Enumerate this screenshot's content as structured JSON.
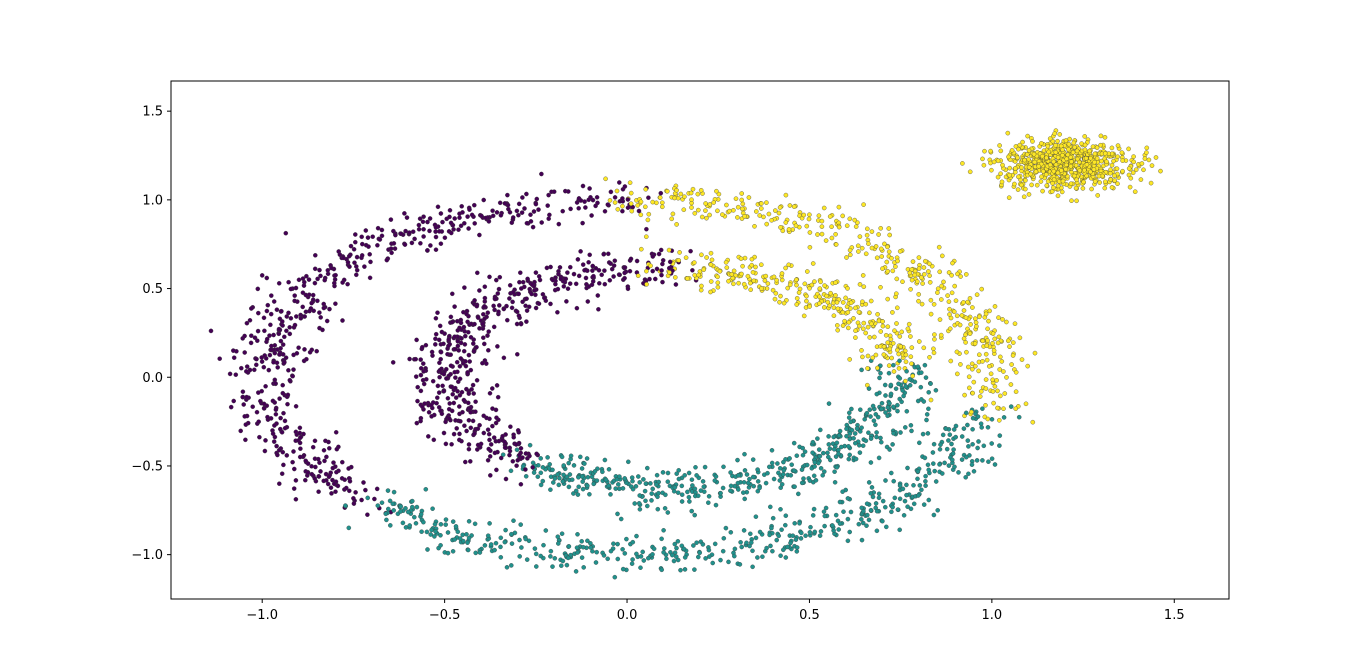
{
  "chart_data": {
    "type": "scatter",
    "title": "",
    "xlabel": "",
    "ylabel": "",
    "xlim": [
      -1.25,
      1.65
    ],
    "ylim": [
      -1.25,
      1.67
    ],
    "xticks": [
      -1.0,
      -0.5,
      0.0,
      0.5,
      1.0,
      1.5
    ],
    "xtick_labels": [
      "−1.0",
      "−0.5",
      "0.0",
      "0.5",
      "1.0",
      "1.5"
    ],
    "yticks": [
      -1.0,
      -0.5,
      0.0,
      0.5,
      1.0,
      1.5
    ],
    "ytick_labels": [
      "−1.0",
      "−0.5",
      "0.0",
      "0.5",
      "1.0",
      "1.5"
    ],
    "grid": false,
    "legend": "none",
    "colors": {
      "cluster_0": "#440154",
      "cluster_1": "#21918c",
      "cluster_2": "#fde725",
      "edge": "#3b3b3b",
      "axes": "#000000",
      "background": "#ffffff"
    },
    "groups": [
      {
        "shape": "ring",
        "center": [
          0.0,
          0.0
        ],
        "radius": [
          1.0,
          1.0
        ],
        "noise": 0.055,
        "count": 1500,
        "cluster_arcs_deg": [
          {
            "cluster": 2,
            "from": -12,
            "to": 90
          },
          {
            "cluster": 0,
            "from": 90,
            "to": 225
          },
          {
            "cluster": 1,
            "from": 225,
            "to": 348
          }
        ]
      },
      {
        "shape": "ring",
        "center": [
          0.12,
          0.0
        ],
        "radius": [
          0.62,
          0.62
        ],
        "noise": 0.055,
        "count": 1350,
        "cluster_arcs_deg": [
          {
            "cluster": 2,
            "from": 5,
            "to": 90
          },
          {
            "cluster": 0,
            "from": 90,
            "to": 230
          },
          {
            "cluster": 1,
            "from": 230,
            "to": 365
          }
        ]
      },
      {
        "shape": "blob",
        "center": [
          1.2,
          1.2
        ],
        "spread": [
          0.09,
          0.07
        ],
        "count": 700,
        "cluster": 2
      }
    ]
  }
}
